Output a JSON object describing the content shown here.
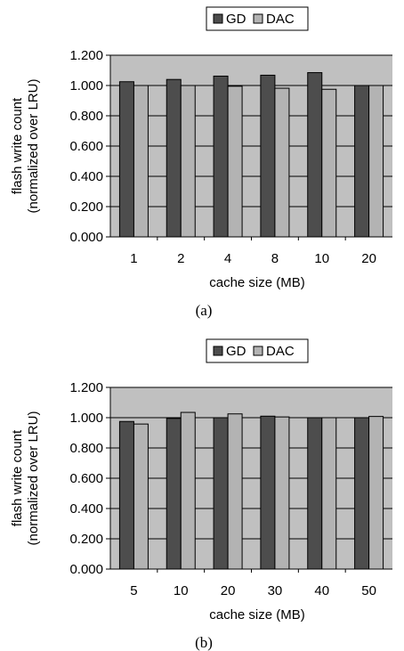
{
  "chart_data": [
    {
      "type": "bar",
      "panel_label": "(a)",
      "xlabel": "cache size (MB)",
      "ylabel_lines": [
        "flash write count",
        "(normalized over LRU)"
      ],
      "categories": [
        "1",
        "2",
        "4",
        "8",
        "10",
        "20"
      ],
      "series": [
        {
          "name": "GD",
          "values": [
            1.025,
            1.04,
            1.062,
            1.068,
            1.085,
            1.0
          ],
          "color": "#4d4d4d"
        },
        {
          "name": "DAC",
          "values": [
            1.0,
            1.0,
            0.995,
            0.982,
            0.975,
            1.0
          ],
          "color": "#b3b3b3"
        }
      ],
      "ylim": [
        0,
        1.2
      ],
      "yticks": [
        "0.000",
        "0.200",
        "0.400",
        "0.600",
        "0.800",
        "1.000",
        "1.200"
      ],
      "grid": true,
      "legend_position": "top-center",
      "plot_background": "#c0c0c0"
    },
    {
      "type": "bar",
      "panel_label": "(b)",
      "xlabel": "cache size (MB)",
      "ylabel_lines": [
        "flash write count",
        "(normalized over LRU)"
      ],
      "categories": [
        "5",
        "10",
        "20",
        "30",
        "40",
        "50"
      ],
      "series": [
        {
          "name": "GD",
          "values": [
            0.975,
            0.995,
            1.0,
            1.01,
            1.0,
            1.0
          ],
          "color": "#4d4d4d"
        },
        {
          "name": "DAC",
          "values": [
            0.958,
            1.035,
            1.025,
            1.005,
            1.0,
            1.008
          ],
          "color": "#b3b3b3"
        }
      ],
      "ylim": [
        0,
        1.2
      ],
      "yticks": [
        "0.000",
        "0.200",
        "0.400",
        "0.600",
        "0.800",
        "1.000",
        "1.200"
      ],
      "grid": true,
      "legend_position": "top-center",
      "plot_background": "#c0c0c0"
    }
  ]
}
